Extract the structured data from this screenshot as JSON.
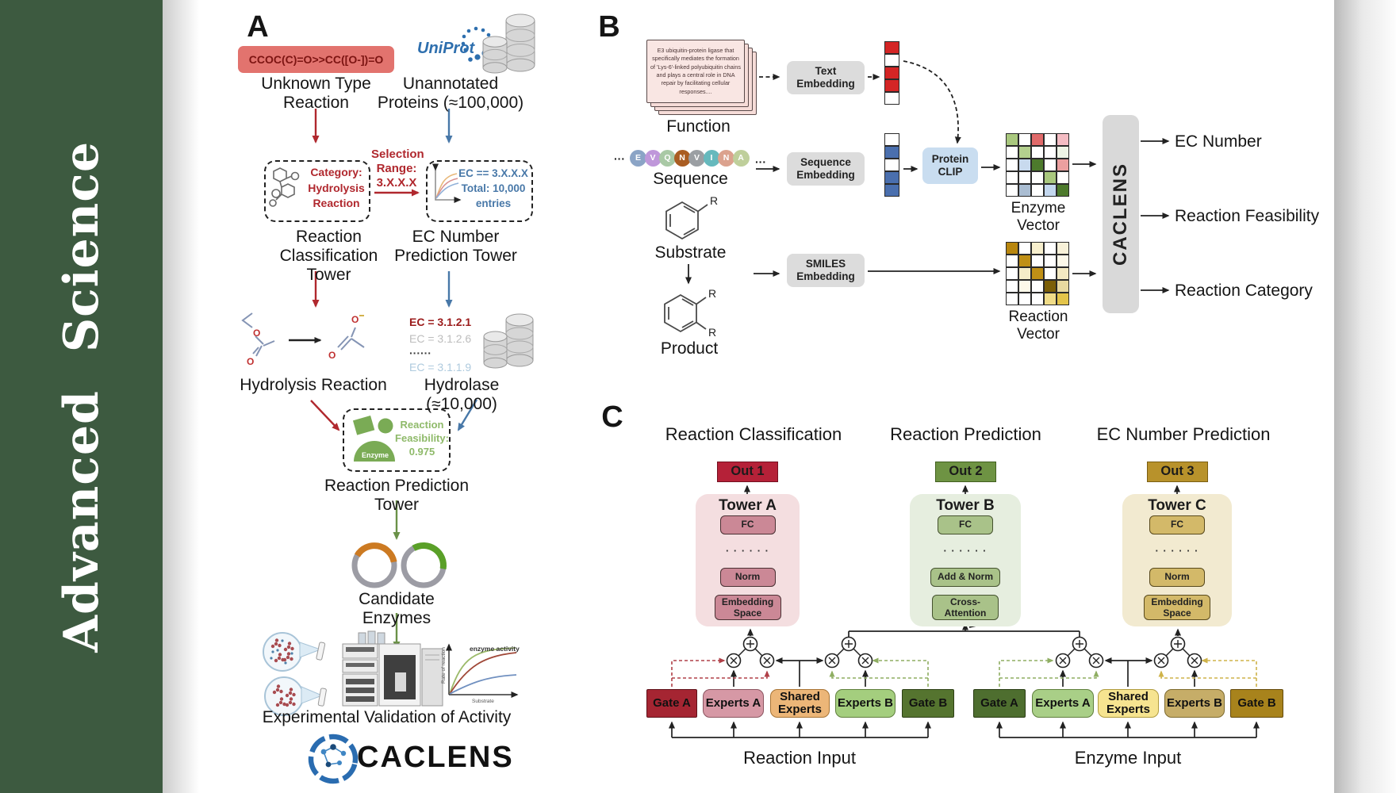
{
  "sidebar": {
    "journal_name": "Advanced Science"
  },
  "panelA": {
    "label": "A",
    "smiles": "CCOC(C)=O>>CC([O-])=O",
    "unknown_reaction_label": "Unknown Type\nReaction",
    "uniprot_logo": "UniProt",
    "unannotated_label": "Unannotated\nProteins (≈100,000)",
    "selection_label": "Selection\nRange:\n3.X.X.X",
    "category_box": "Category:\nHydrolysis\nReaction",
    "ec_box": "EC == 3.X.X.X\nTotal: 10,000\nentries",
    "classification_tower_label": "Reaction\nClassification Tower",
    "ec_tower_label": "EC Number\nPrediction Tower",
    "ec_list": [
      {
        "text": "EC = 3.1.2.1",
        "color": "#9b1b1b",
        "weight": "bold"
      },
      {
        "text": "EC = 3.1.2.6",
        "color": "#bdbdbd",
        "weight": "normal"
      },
      {
        "text": "······",
        "color": "#3a3a3a",
        "weight": "bold"
      },
      {
        "text": "EC = 3.1.1.9",
        "color": "#aecade",
        "weight": "normal"
      }
    ],
    "hydrolysis_label": "Hydrolysis Reaction",
    "hydrolase_label": "Hydrolase (≈10,000)",
    "enzyme_badge": "Enzyme",
    "feasibility_label": "Reaction\nFeasibility:\n0.975",
    "prediction_tower_label": "Reaction Prediction Tower",
    "candidate_label": "Candidate Enzymes",
    "activity_plot": {
      "annotation": "enzyme activity",
      "ylabel": "Rate of reaction",
      "xlabel": "Substrate"
    },
    "validation_label": "Experimental Validation of Activity",
    "brand": "CACLENS",
    "atoms": {
      "oxygen": "O"
    }
  },
  "panelB": {
    "label": "B",
    "function_card_text": "E3 ubiquitin-protein ligase that specifically mediates the formation of 'Lys-6'-linked polyubiquitin chains and plays a central role in DNA repair by facilitating cellular responses....",
    "function_label": "Function",
    "ellipsis": "···",
    "sequence_letters": [
      {
        "ch": "E",
        "color": "#8ba4c6"
      },
      {
        "ch": "V",
        "color": "#bf97da"
      },
      {
        "ch": "Q",
        "color": "#a9c9a5"
      },
      {
        "ch": "N",
        "color": "#aa5d22"
      },
      {
        "ch": "V",
        "color": "#9b9fa3"
      },
      {
        "ch": "I",
        "color": "#66b9bd"
      },
      {
        "ch": "N",
        "color": "#dba28e"
      },
      {
        "ch": "A",
        "color": "#bfcf9b"
      }
    ],
    "sequence_label": "Sequence",
    "substrate_label": "Substrate",
    "product_label": "Product",
    "r_group": "R",
    "text_embedding": "Text\nEmbedding",
    "sequence_embedding": "Sequence\nEmbedding",
    "smiles_embedding": "SMILES\nEmbedding",
    "protein_clip": "Protein\nCLIP",
    "text_vector": [
      "#d42525",
      "#ffffff",
      "#d42525",
      "#d42525",
      "#ffffff"
    ],
    "sequence_vector": [
      "#ffffff",
      "#4a6fae",
      "#ffffff",
      "#4a6fae",
      "#4a6fae"
    ],
    "enzyme_grid": [
      [
        "#a9c87e",
        "#ffffff",
        "#e06a6a",
        "#ffffff",
        "#f4bcc3"
      ],
      [
        "#ffffff",
        "#b4d08e",
        "#ffffff",
        "#ffffff",
        "#eef5e6"
      ],
      [
        "#ffffff",
        "#c8daee",
        "#4d7a2c",
        "#ffffff",
        "#eb9f9f"
      ],
      [
        "#ffffff",
        "#ffffff",
        "#ffffff",
        "#a9c87e",
        "#ffffff"
      ],
      [
        "#ffffff",
        "#aabdd2",
        "#ffffff",
        "#c3d7ee",
        "#4d7a2c"
      ]
    ],
    "reaction_grid": [
      [
        "#b8860e",
        "#ffffff",
        "#f7efcd",
        "#ffffff",
        "#f8f1d8"
      ],
      [
        "#ffffff",
        "#c09016",
        "#ffffff",
        "#ffffff",
        "#fdf9ea"
      ],
      [
        "#ffffff",
        "#f5ecc8",
        "#c09016",
        "#ffffff",
        "#f3e9c2"
      ],
      [
        "#ffffff",
        "#fdf9ea",
        "#ffffff",
        "#7c5f08",
        "#e8d9a0"
      ],
      [
        "#ffffff",
        "#ffffff",
        "#ffffff",
        "#f0dc88",
        "#e3c44a"
      ]
    ],
    "enzyme_vector_label": "Enzyme Vector",
    "reaction_vector_label": "Reaction Vector",
    "caclens_bar": "CACLENS",
    "outputs": [
      "EC Number",
      "Reaction Feasibility",
      "Reaction Category"
    ]
  },
  "panelC": {
    "label": "C",
    "columns": [
      {
        "title": "Reaction Classification",
        "out": "Out 1",
        "out_bg": "#b52138",
        "out_border": "#731020",
        "tower": "Tower A",
        "tower_bg": "#f4dee0",
        "block_bg": "#cb8896",
        "block_border": "#4a3033",
        "blocks": [
          "FC",
          "· · · · · ·",
          "Norm",
          "Embedding\nSpace"
        ]
      },
      {
        "title": "Reaction Prediction",
        "out": "Out 2",
        "out_bg": "#6e9343",
        "out_border": "#41601f",
        "tower": "Tower B",
        "tower_bg": "#e6eedf",
        "block_bg": "#a9c289",
        "block_border": "#45522f",
        "blocks": [
          "FC",
          "· · · · · ·",
          "Add & Norm",
          "Cross-\nAttention"
        ]
      },
      {
        "title": "EC Number Prediction",
        "out": "Out 3",
        "out_bg": "#b8922b",
        "out_border": "#7a5e12",
        "tower": "Tower C",
        "tower_bg": "#f2ead0",
        "block_bg": "#d3b969",
        "block_border": "#58491c",
        "blocks": [
          "FC",
          "· · · · · ·",
          "Norm",
          "Embedding\nSpace"
        ]
      }
    ],
    "groups": [
      {
        "input_label": "Reaction Input",
        "boxes": [
          {
            "label": "Gate A",
            "bg": "#a52532",
            "border": "#5e1018"
          },
          {
            "label": "Experts A",
            "bg": "#d698a5",
            "border": "#8c5560"
          },
          {
            "label": "Shared\nExperts",
            "bg": "#ecb678",
            "border": "#a87434"
          },
          {
            "label": "Experts B",
            "bg": "#a4ce7e",
            "border": "#5f7f3c"
          },
          {
            "label": "Gate B",
            "bg": "#55742f",
            "border": "#2c3f14"
          }
        ]
      },
      {
        "input_label": "Enzyme Input",
        "boxes": [
          {
            "label": "Gate A",
            "bg": "#4e6e2f",
            "border": "#283a12"
          },
          {
            "label": "Experts A",
            "bg": "#a9cf87",
            "border": "#5f7f3c"
          },
          {
            "label": "Shared\nExperts",
            "bg": "#f6e490",
            "border": "#b09c3e"
          },
          {
            "label": "Experts B",
            "bg": "#c6ad68",
            "border": "#7d6a2e"
          },
          {
            "label": "Gate B",
            "bg": "#a8831c",
            "border": "#63490a"
          }
        ]
      }
    ]
  }
}
